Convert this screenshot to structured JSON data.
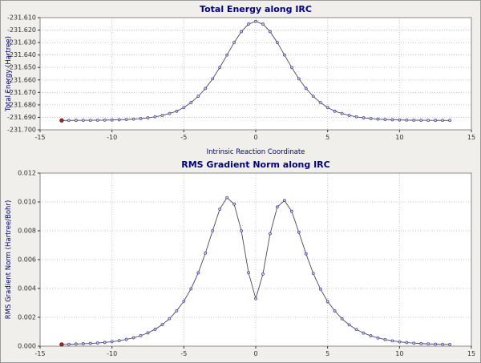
{
  "style": {
    "page_bg": "#f0efeb",
    "plot_bg": "#ffffff",
    "frame_color": "#8a8a8a",
    "grid_color": "#c6c6c6",
    "tick_color": "#303030",
    "title_color": "#00007f",
    "axis_label_color": "#00006a",
    "marker_fill": "#d8d8f0"
  },
  "chart_data": [
    {
      "type": "line",
      "title": "Total Energy along IRC",
      "xlabel": "Intrinsic Reaction Coordinate",
      "ylabel": "Total Energy (Hartree)",
      "xlim": [
        -15,
        15
      ],
      "ylim": [
        -231.7,
        -231.61
      ],
      "grid": true,
      "legend": null,
      "line_color": "#4a4a4a",
      "marker_color": "#4343a8",
      "first_point_color": "#a03030",
      "xticks": [
        -15,
        -10,
        -5,
        0,
        5,
        10,
        15
      ],
      "xtick_labels": [
        "-15",
        "-10",
        "-5",
        "0",
        "5",
        "10",
        "15"
      ],
      "yticks": [
        -231.7,
        -231.69,
        -231.68,
        -231.67,
        -231.66,
        -231.65,
        -231.64,
        -231.63,
        -231.62,
        -231.61
      ],
      "ytick_labels": [
        "-231.700",
        "-231.690",
        "-231.680",
        "-231.670",
        "-231.660",
        "-231.650",
        "-231.640",
        "-231.630",
        "-231.620",
        "-231.610"
      ],
      "x": [
        -13.5,
        -13,
        -12.5,
        -12,
        -11.5,
        -11,
        -10.5,
        -10,
        -9.5,
        -9,
        -8.5,
        -8,
        -7.5,
        -7,
        -6.5,
        -6,
        -5.5,
        -5,
        -4.5,
        -4,
        -3.5,
        -3,
        -2.5,
        -2,
        -1.5,
        -1,
        -0.5,
        0,
        0.5,
        1,
        1.5,
        2,
        2.5,
        3,
        3.5,
        4,
        4.5,
        5,
        5.5,
        6,
        6.5,
        7,
        7.5,
        8,
        8.5,
        9,
        9.5,
        10,
        10.5,
        11,
        11.5,
        12,
        12.5,
        13,
        13.5
      ],
      "y": [
        -231.69246,
        -231.69245,
        -231.69242,
        -231.69239,
        -231.69235,
        -231.69229,
        -231.69221,
        -231.6921,
        -231.69194,
        -231.69172,
        -231.69141,
        -231.69098,
        -231.69039,
        -231.68957,
        -231.68844,
        -231.68688,
        -231.68508,
        -231.68208,
        -231.67813,
        -231.6731,
        -231.66684,
        -231.65911,
        -231.64995,
        -231.64001,
        -231.62998,
        -231.62122,
        -231.61517,
        -231.613,
        -231.61517,
        -231.62122,
        -231.62998,
        -231.64001,
        -231.64995,
        -231.65911,
        -231.66684,
        -231.6731,
        -231.67813,
        -231.68208,
        -231.68508,
        -231.68688,
        -231.68844,
        -231.68957,
        -231.69039,
        -231.69098,
        -231.69141,
        -231.69172,
        -231.69194,
        -231.6921,
        -231.69221,
        -231.69229,
        -231.69235,
        -231.69239,
        -231.69242,
        -231.69245,
        -231.69246
      ]
    },
    {
      "type": "line",
      "title": "RMS Gradient Norm along IRC",
      "xlabel": "",
      "ylabel": "RMS Gradient Norm (Hartree/Bohr)",
      "xlim": [
        -15,
        15
      ],
      "ylim": [
        0.0,
        0.012
      ],
      "grid": true,
      "legend": null,
      "line_color": "#4a4a4a",
      "marker_color": "#4343a8",
      "first_point_color": "#a03030",
      "xticks": [
        -15,
        -10,
        -5,
        0,
        5,
        10,
        15
      ],
      "xtick_labels": [
        "-15",
        "-10",
        "-5",
        "0",
        "5",
        "10",
        "15"
      ],
      "yticks": [
        0.0,
        0.002,
        0.004,
        0.006,
        0.008,
        0.01,
        0.012
      ],
      "ytick_labels": [
        "0.000",
        "0.002",
        "0.004",
        "0.006",
        "0.008",
        "0.010",
        "0.012"
      ],
      "x": [
        -13.5,
        -13,
        -12.5,
        -12,
        -11.5,
        -11,
        -10.5,
        -10,
        -9.5,
        -9,
        -8.5,
        -8,
        -7.5,
        -7,
        -6.5,
        -6,
        -5.5,
        -5,
        -4.5,
        -4,
        -3.5,
        -3,
        -2.5,
        -2,
        -1.5,
        -1,
        -0.5,
        0,
        0.5,
        1,
        1.5,
        2,
        2.5,
        3,
        3.5,
        4,
        4.5,
        5,
        5.5,
        6,
        6.5,
        7,
        7.5,
        8,
        8.5,
        9,
        9.5,
        10,
        10.5,
        11,
        11.5,
        12,
        12.5,
        13,
        13.5
      ],
      "y": [
        0.00012,
        0.00013,
        0.00015,
        0.00017,
        0.00019,
        0.00022,
        0.00026,
        0.00031,
        0.00038,
        0.00047,
        0.00058,
        0.00073,
        0.00092,
        0.00117,
        0.00149,
        0.00191,
        0.00245,
        0.00312,
        0.00398,
        0.00508,
        0.00645,
        0.008,
        0.0095,
        0.0103,
        0.00985,
        0.008,
        0.0051,
        0.0033,
        0.005,
        0.0078,
        0.00965,
        0.0101,
        0.00935,
        0.0079,
        0.0064,
        0.00505,
        0.00396,
        0.0031,
        0.00244,
        0.0019,
        0.00148,
        0.00116,
        0.00091,
        0.00072,
        0.00057,
        0.00046,
        0.00037,
        0.0003,
        0.00025,
        0.00021,
        0.00018,
        0.00016,
        0.00014,
        0.00013,
        0.00012
      ]
    }
  ]
}
